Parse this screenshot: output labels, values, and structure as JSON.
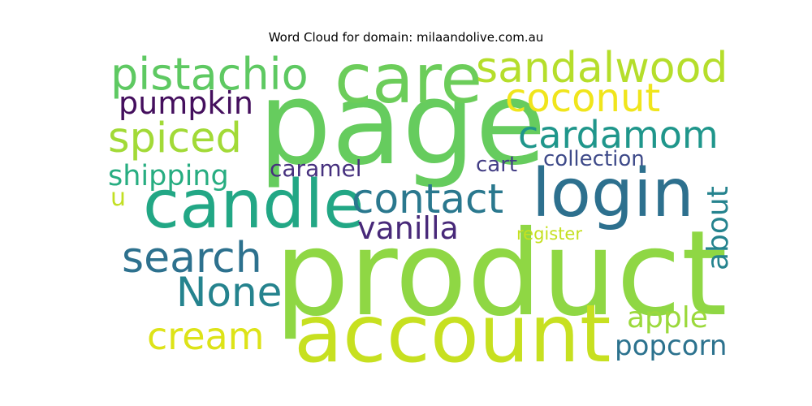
{
  "title": "Word Cloud for domain: milaandolive.com.au",
  "words": [
    {
      "text": "page",
      "color": "#66cc5e"
    },
    {
      "text": "product",
      "color": "#8fd744"
    },
    {
      "text": "account",
      "color": "#c7e020"
    },
    {
      "text": "care",
      "color": "#6ccd5a"
    },
    {
      "text": "candle",
      "color": "#22a785"
    },
    {
      "text": "login",
      "color": "#2d708e"
    },
    {
      "text": "pistachio",
      "color": "#5ec962"
    },
    {
      "text": "sandalwood",
      "color": "#b5de2b"
    },
    {
      "text": "coconut",
      "color": "#f0e51c"
    },
    {
      "text": "pumpkin",
      "color": "#440f5d"
    },
    {
      "text": "spiced",
      "color": "#a2da37"
    },
    {
      "text": "cardamom",
      "color": "#1f968b"
    },
    {
      "text": "shipping",
      "color": "#27ad81"
    },
    {
      "text": "caramel",
      "color": "#46307e"
    },
    {
      "text": "collection",
      "color": "#3e4a89"
    },
    {
      "text": "cart",
      "color": "#433e85"
    },
    {
      "text": "contact",
      "color": "#2a788e"
    },
    {
      "text": "u",
      "color": "#c2df23"
    },
    {
      "text": "vanilla",
      "color": "#482979"
    },
    {
      "text": "about",
      "color": "#25838e"
    },
    {
      "text": "register",
      "color": "#c5e021"
    },
    {
      "text": "search",
      "color": "#2d718e"
    },
    {
      "text": "None",
      "color": "#25838e"
    },
    {
      "text": "apple",
      "color": "#9bd93c"
    },
    {
      "text": "cream",
      "color": "#dde318"
    },
    {
      "text": "popcorn",
      "color": "#2c728e"
    }
  ]
}
